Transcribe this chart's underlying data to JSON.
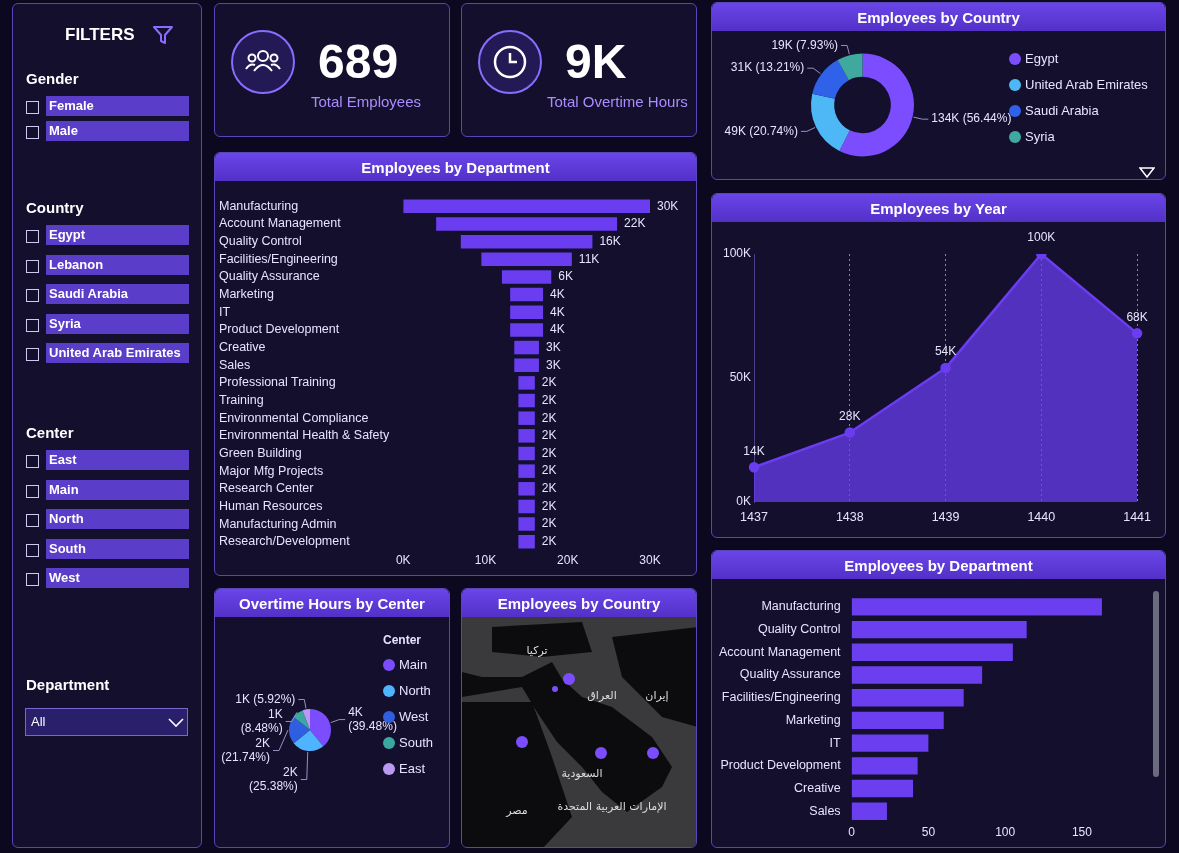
{
  "chart_data": [
    {
      "type": "other",
      "title": "FILTERS",
      "annotations": [
        "Gender",
        "Female",
        "Male",
        "Country",
        "Egypt",
        "Lebanon",
        "Saudi Arabia",
        "Syria",
        "United Arab Emirates",
        "Center",
        "East",
        "Main",
        "North",
        "South",
        "West",
        "Department",
        "All"
      ]
    },
    {
      "type": "other",
      "title": "Total Employees",
      "annotations": [
        "689"
      ]
    },
    {
      "type": "other",
      "title": "Total Overtime Hours",
      "annotations": [
        "9K"
      ]
    },
    {
      "type": "donut",
      "title": "Employees by Country",
      "categories": [
        "Egypt",
        "United Arab Emirates",
        "Saudi Arabia",
        "Syria"
      ],
      "values": [
        56.44,
        20.74,
        13.21,
        7.93
      ],
      "colors": [
        "#7b4dff",
        "#4db8f5",
        "#2f62e8",
        "#3fa9a0"
      ],
      "value_labels": [
        "134K (56.44%)",
        "49K (20.74%)",
        "31K (13.21%)",
        "19K (7.93%)"
      ],
      "legend": "right"
    },
    {
      "type": "bar",
      "orientation": "horizontal",
      "title": "Employees by Department",
      "categories": [
        "Manufacturing",
        "Account Management",
        "Quality Control",
        "Facilities/Engineering",
        "Quality Assurance",
        "Marketing",
        "IT",
        "Product Development",
        "Creative",
        "Sales",
        "Professional Training",
        "Training",
        "Environmental Compliance",
        "Environmental Health & Safety",
        "Green Building",
        "Major Mfg Projects",
        "Research Center",
        "Human Resources",
        "Manufacturing Admin",
        "Research/Development"
      ],
      "values": [
        30,
        22,
        16,
        11,
        6,
        4,
        4,
        4,
        3,
        3,
        2,
        2,
        2,
        2,
        2,
        2,
        2,
        2,
        2,
        2
      ],
      "base": [
        0,
        4,
        7,
        9.5,
        12,
        13,
        13,
        13,
        13.5,
        13.5,
        14,
        14,
        14,
        14,
        14,
        14,
        14,
        14,
        14,
        14
      ],
      "value_labels": [
        "30K",
        "22K",
        "16K",
        "11K",
        "6K",
        "4K",
        "4K",
        "4K",
        "3K",
        "3K",
        "2K",
        "2K",
        "2K",
        "2K",
        "2K",
        "2K",
        "2K",
        "2K",
        "2K",
        "2K"
      ],
      "color": "#6a3df0",
      "xlim": [
        0,
        30
      ],
      "xticks": [
        {
          "value": 0,
          "label": "0K"
        },
        {
          "value": 10,
          "label": "10K"
        },
        {
          "value": 20,
          "label": "20K"
        },
        {
          "value": 30,
          "label": "30K"
        }
      ]
    },
    {
      "type": "area",
      "title": "Employees by Year",
      "categories": [
        "1437",
        "1438",
        "1439",
        "1440",
        "1441"
      ],
      "values": [
        14,
        28,
        54,
        100,
        68
      ],
      "value_labels": [
        "14K",
        "28K",
        "54K",
        "100K",
        "68K"
      ],
      "color": "#6a3df0",
      "marker": "circle",
      "grid": "x",
      "ylim": [
        0,
        100
      ],
      "yticks": [
        {
          "value": 0,
          "label": "0K"
        },
        {
          "value": 50,
          "label": "50K"
        },
        {
          "value": 100,
          "label": "100K"
        }
      ]
    },
    {
      "type": "pie",
      "title": "Overtime Hours by Center",
      "categories": [
        "Main",
        "North",
        "West",
        "South",
        "East"
      ],
      "values": [
        39.48,
        25.38,
        21.74,
        8.48,
        5.92
      ],
      "colors": [
        "#7b4dff",
        "#4fb3ff",
        "#2f5fe0",
        "#3aa7a0",
        "#b99af0"
      ],
      "value_labels": [
        "4K\n(39.48%)",
        "2K\n(25.38%)",
        "2K\n(21.74%)",
        "1K\n(8.48%)",
        "1K (5.92%)"
      ],
      "legend": "right",
      "legend_title": "Center"
    },
    {
      "type": "other",
      "title": "Employees by Country",
      "annotations": [
        "تركيا",
        "العراق",
        "إيران",
        "السعودية",
        "الإمارات العربية المتحدة",
        "مصر"
      ]
    },
    {
      "type": "bar",
      "orientation": "horizontal",
      "title": "Employees by Department",
      "categories": [
        "Manufacturing",
        "Quality Control",
        "Account Management",
        "Quality Assurance",
        "Facilities/Engineering",
        "Marketing",
        "IT",
        "Product Development",
        "Creative",
        "Sales"
      ],
      "values": [
        163,
        114,
        105,
        85,
        73,
        60,
        50,
        43,
        40,
        23
      ],
      "color": "#6b3ff0",
      "xlim": [
        0,
        165
      ],
      "xticks": [
        0,
        50,
        100,
        150
      ]
    }
  ]
}
